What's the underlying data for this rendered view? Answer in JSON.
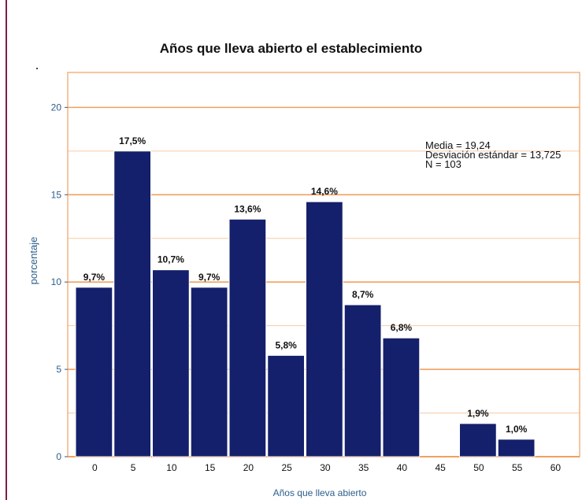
{
  "chart_data": {
    "type": "bar",
    "title": "Años que lleva abierto el establecimiento",
    "xlabel": "Años que lleva abierto",
    "ylabel": "porcentaje",
    "ylim": [
      0,
      22
    ],
    "yticks": [
      0,
      5,
      10,
      15,
      20
    ],
    "xticks": [
      0,
      5,
      10,
      15,
      20,
      25,
      30,
      35,
      40,
      45,
      50,
      55,
      60
    ],
    "grid": "horizontal",
    "bin_width": 5,
    "bars": [
      {
        "x": 0,
        "value": 9.7,
        "label": "9,7%"
      },
      {
        "x": 5,
        "value": 17.5,
        "label": "17,5%"
      },
      {
        "x": 10,
        "value": 10.7,
        "label": "10,7%"
      },
      {
        "x": 15,
        "value": 9.7,
        "label": "9,7%"
      },
      {
        "x": 20,
        "value": 13.6,
        "label": "13,6%"
      },
      {
        "x": 25,
        "value": 5.8,
        "label": "5,8%"
      },
      {
        "x": 30,
        "value": 14.6,
        "label": "14,6%"
      },
      {
        "x": 35,
        "value": 8.7,
        "label": "8,7%"
      },
      {
        "x": 40,
        "value": 6.8,
        "label": "6,8%"
      },
      {
        "x": 50,
        "value": 1.9,
        "label": "1,9%"
      },
      {
        "x": 55,
        "value": 1.0,
        "label": "1,0%"
      }
    ],
    "stats": {
      "mean": "Media = 19,24",
      "sd": "Desviación estándar = 13,725",
      "n": "N = 103"
    },
    "colors": {
      "bar": "#14206b",
      "grid": "#f0a060",
      "axis_text": "#2b5e8c"
    }
  }
}
